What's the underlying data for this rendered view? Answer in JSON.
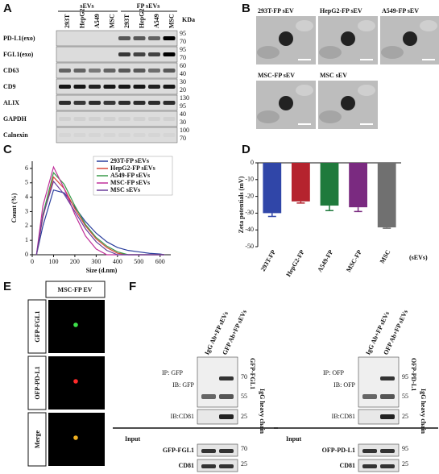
{
  "panel_a": {
    "letter": "A",
    "group_labels": [
      "sEVs",
      "FP sEVs"
    ],
    "lanes": [
      "293T",
      "HepG2",
      "A549",
      "MSC",
      "293T",
      "HepG2",
      "A549",
      "MSC"
    ],
    "unit": "KDa",
    "rows": [
      {
        "label": "PD-L1(exo)",
        "markers": [
          95,
          70
        ]
      },
      {
        "label": "FGL1(exo)",
        "markers": [
          95,
          70
        ]
      },
      {
        "label": "CD63",
        "markers": [
          60,
          40
        ]
      },
      {
        "label": "CD9",
        "markers": [
          30,
          20
        ]
      },
      {
        "label": "ALIX",
        "markers": [
          130,
          95
        ]
      },
      {
        "label": "GAPDH",
        "markers": [
          40,
          30
        ]
      },
      {
        "label": "Calnexin",
        "markers": [
          100,
          70
        ]
      }
    ]
  },
  "panel_b": {
    "letter": "B",
    "images": [
      "293T-FP sEV",
      "HepG2-FP sEV",
      "A549-FP sEV",
      "MSC-FP sEV",
      "MSC sEV"
    ]
  },
  "chart_data": [
    {
      "type": "line",
      "panel_label": "C",
      "x_label": "Size (d.nm)",
      "y_label": "Count (%)",
      "x": [
        20,
        50,
        100,
        150,
        200,
        250,
        300,
        350,
        400,
        450,
        500,
        550,
        600,
        620
      ],
      "series": [
        {
          "name": "293T-FP sEVs",
          "color": "#2b3f9e",
          "values": [
            0,
            2.0,
            4.5,
            4.3,
            3.3,
            2.3,
            1.5,
            0.9,
            0.5,
            0.3,
            0.2,
            0.1,
            0.05,
            0
          ]
        },
        {
          "name": "HepG2-FP sEVs",
          "color": "#d9473b",
          "values": [
            0,
            2.6,
            5.4,
            4.6,
            3.2,
            2.0,
            1.1,
            0.5,
            0.1,
            0,
            0,
            0,
            0,
            0
          ]
        },
        {
          "name": "A549-FP sEVs",
          "color": "#3a9a4a",
          "values": [
            0,
            2.8,
            5.7,
            4.9,
            3.4,
            2.1,
            1.2,
            0.6,
            0.2,
            0,
            0,
            0,
            0,
            0
          ]
        },
        {
          "name": "MSC-FP sEVs",
          "color": "#c0309a",
          "values": [
            0,
            3.4,
            6.1,
            4.6,
            2.8,
            1.3,
            0.4,
            0,
            0,
            0,
            0,
            0,
            0,
            0
          ]
        },
        {
          "name": "MSC sEVs",
          "color": "#6a3d9a",
          "values": [
            0,
            2.7,
            5.1,
            4.2,
            3.0,
            1.8,
            0.9,
            0.3,
            0,
            0,
            0,
            0,
            0,
            0
          ]
        }
      ],
      "xlim": [
        0,
        650
      ],
      "xticks": [
        0,
        100,
        200,
        300,
        400,
        500,
        600
      ],
      "ylim": [
        0,
        6.5
      ],
      "yticks": [
        0,
        1,
        2,
        3,
        4,
        5,
        6
      ]
    },
    {
      "type": "bar",
      "panel_label": "D",
      "x_label": "(sEVs)",
      "y_label": "Zeta potentials (mV)",
      "categories": [
        "293T-FP",
        "HepG2-FP",
        "A549-FP",
        "MSC-FP",
        "MSC"
      ],
      "values": [
        -30,
        -23,
        -25.5,
        -26.5,
        -38.5
      ],
      "errors": [
        2,
        1,
        3,
        2.5,
        0.5
      ],
      "colors": [
        "#3046a8",
        "#b5232e",
        "#1f7a3c",
        "#7a2a80",
        "#707070"
      ],
      "ylim": [
        -50,
        0
      ],
      "yticks": [
        0,
        -10,
        -20,
        -30,
        -40,
        -50
      ]
    }
  ],
  "panel_e": {
    "letter": "E",
    "header": "MSC-FP EV",
    "rows": [
      "GFP-FGL1",
      "OFP-PD-L1",
      "Merge"
    ]
  },
  "panel_f": {
    "letter": "F",
    "blots": [
      {
        "lanes": [
          "IgG Ab+FP sEVs",
          "GFP Ab+FP sEVs"
        ],
        "ip": "IP: GFP",
        "ib": "IB: GFP",
        "ib_cd81": "IB:CD81",
        "markers": [
          70,
          55
        ],
        "cd81_marker": 25,
        "target": "GFP-FGL1",
        "heavy_chain": "IgG heavy chain",
        "input": "Input",
        "input_rows": [
          {
            "label": "GFP-FGL1",
            "marker": 70
          },
          {
            "label": "CD81",
            "marker": 25
          }
        ]
      },
      {
        "lanes": [
          "IgG Ab+FP sEVs",
          "OFP Ab+FP sEVs"
        ],
        "ip": "IP: OFP",
        "ib": "IB: OFP",
        "ib_cd81": "IB:CD81",
        "markers": [
          95,
          55
        ],
        "cd81_marker": 25,
        "target": "OFP-PD-L1",
        "heavy_chain": "IgG heavy chain",
        "input": "Input",
        "input_rows": [
          {
            "label": "OFP-PD-L1",
            "marker": 95
          },
          {
            "label": "CD81",
            "marker": 25
          }
        ]
      }
    ]
  }
}
